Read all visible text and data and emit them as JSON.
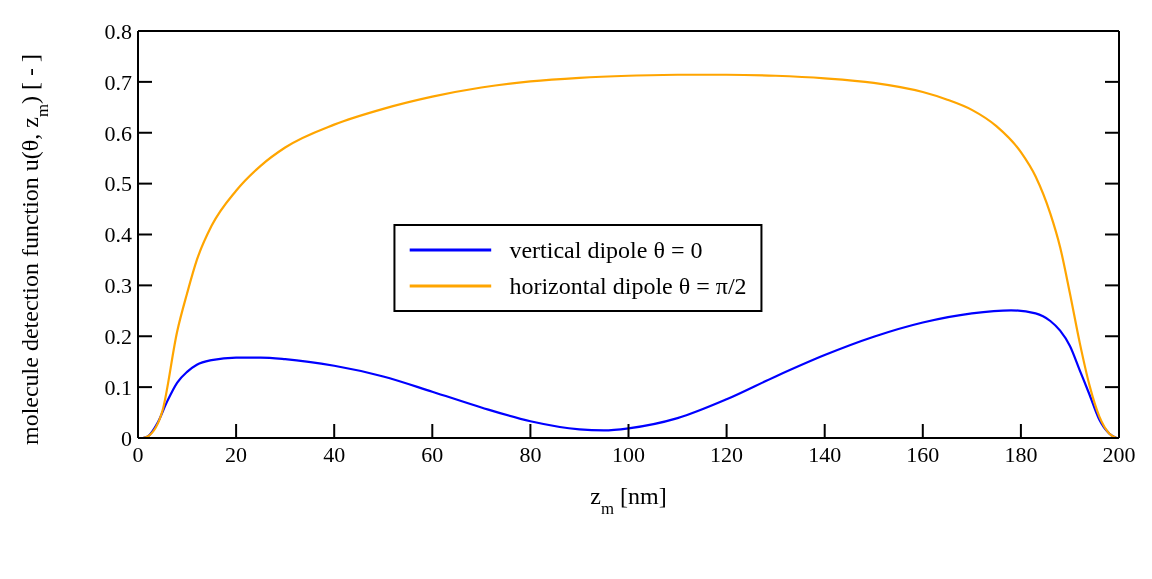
{
  "chart_data": {
    "type": "line",
    "xlabel": "z$_{m}$ [nm]",
    "ylabel": "molecule detection function u(θ, z$_{m}$) [ - ]",
    "xlim": [
      0,
      200
    ],
    "xticks": [
      0,
      20,
      40,
      60,
      80,
      100,
      120,
      140,
      160,
      180,
      200
    ],
    "ylim": [
      0,
      0.8
    ],
    "yticks": [
      0,
      0.1,
      0.2,
      0.3,
      0.4,
      0.5,
      0.6,
      0.7,
      0.8
    ],
    "legend": "center",
    "marker": "none",
    "line_style": "solid",
    "series": [
      {
        "name": "vertical dipole θ = 0",
        "color": "#0000ff",
        "x": [
          1,
          2,
          4,
          6,
          8,
          10,
          12,
          15,
          20,
          25,
          30,
          40,
          50,
          60,
          70,
          80,
          90,
          95,
          100,
          110,
          120,
          130,
          140,
          150,
          160,
          170,
          178,
          183,
          186,
          188,
          190,
          192,
          194,
          196,
          198,
          199.5
        ],
        "values": [
          0,
          0.003,
          0.03,
          0.073,
          0.109,
          0.13,
          0.144,
          0.153,
          0.158,
          0.158,
          0.155,
          0.142,
          0.121,
          0.091,
          0.06,
          0.033,
          0.017,
          0.015,
          0.019,
          0.039,
          0.076,
          0.121,
          0.163,
          0.199,
          0.227,
          0.245,
          0.251,
          0.245,
          0.23,
          0.211,
          0.181,
          0.133,
          0.085,
          0.036,
          0.009,
          0
        ]
      },
      {
        "name": "horizontal dipole θ = π/2",
        "color": "#ffa500",
        "x": [
          1,
          2,
          5,
          8,
          10,
          12,
          15,
          20,
          25,
          30,
          40,
          50,
          60,
          70,
          80,
          90,
          100,
          110,
          120,
          130,
          140,
          150,
          160,
          165,
          170,
          175,
          180,
          183,
          186,
          188,
          190,
          192,
          194,
          196,
          198,
          199.5
        ],
        "values": [
          0,
          0.003,
          0.054,
          0.21,
          0.284,
          0.35,
          0.417,
          0.486,
          0.535,
          0.571,
          0.616,
          0.647,
          0.671,
          0.689,
          0.701,
          0.708,
          0.712,
          0.714,
          0.714,
          0.712,
          0.707,
          0.698,
          0.68,
          0.665,
          0.645,
          0.613,
          0.562,
          0.514,
          0.441,
          0.375,
          0.284,
          0.187,
          0.103,
          0.042,
          0.009,
          0
        ]
      }
    ]
  }
}
